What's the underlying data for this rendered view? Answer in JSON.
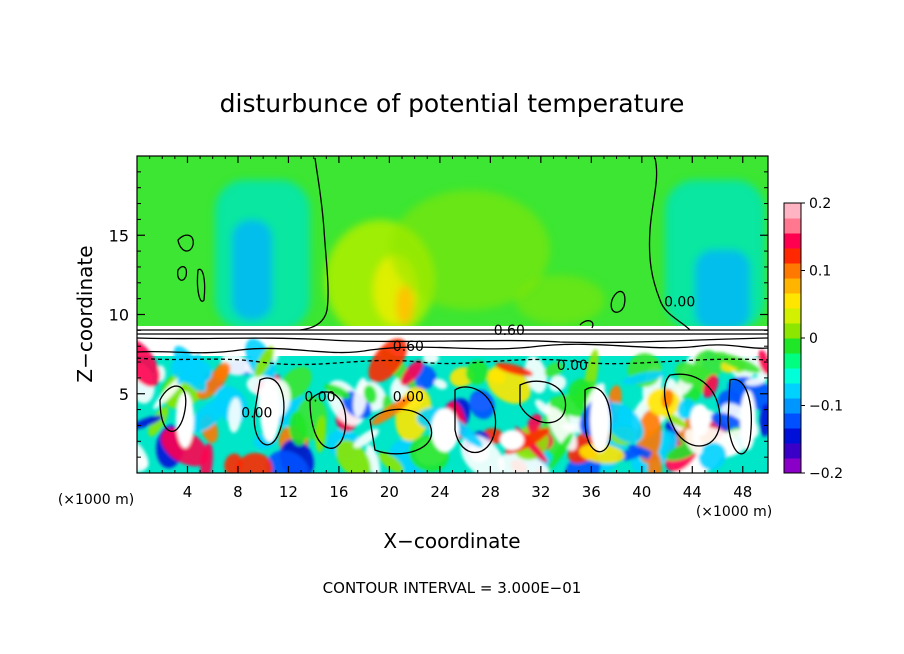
{
  "chart_data": {
    "type": "heatmap",
    "title": "disturbunce of potential temperature",
    "xlabel": "X−coordinate",
    "ylabel": "Z−coordinate",
    "x_unit_left": "(×1000 m)",
    "x_unit_right": "(×1000 m)",
    "xlim": [
      0,
      50
    ],
    "ylim": [
      0,
      20
    ],
    "x_ticks": [
      4,
      8,
      12,
      16,
      20,
      24,
      28,
      32,
      36,
      40,
      44,
      48
    ],
    "y_ticks": [
      5,
      10,
      15
    ],
    "colorbar": {
      "ticks": [
        0.2,
        0.1,
        0,
        -0.1,
        -0.2
      ],
      "tick_labels": [
        "0.2",
        "0.1",
        "0",
        "−0.1",
        "−0.2"
      ],
      "range": [
        -0.2,
        0.2
      ]
    },
    "contour_labels": [
      {
        "text": "0.60",
        "x": 29.5,
        "z": 8.7
      },
      {
        "text": "0.60",
        "x": 21.5,
        "z": 7.7
      },
      {
        "text": "0.00",
        "x": 34.5,
        "z": 6.5
      },
      {
        "text": "0.00",
        "x": 43.0,
        "z": 10.5
      },
      {
        "text": "0.00",
        "x": 14.5,
        "z": 4.5
      },
      {
        "text": "0.00",
        "x": 21.5,
        "z": 4.5
      },
      {
        "text": "0.00",
        "x": 9.5,
        "z": 3.5
      }
    ],
    "contour_interval_text": "CONTOUR INTERVAL = 3.000E−01"
  },
  "colors": {
    "colormap": [
      "#8a00c8",
      "#3a00c8",
      "#0010d8",
      "#0050ff",
      "#0096ff",
      "#00d2ff",
      "#00ffd8",
      "#00ff80",
      "#20e628",
      "#8ce600",
      "#d2f000",
      "#ffe600",
      "#ffb400",
      "#ff7800",
      "#ff2800",
      "#ff0050",
      "#ff7890",
      "#ffb4c4"
    ],
    "green_field": "#3ce632",
    "lower_white": "#ffffff"
  }
}
